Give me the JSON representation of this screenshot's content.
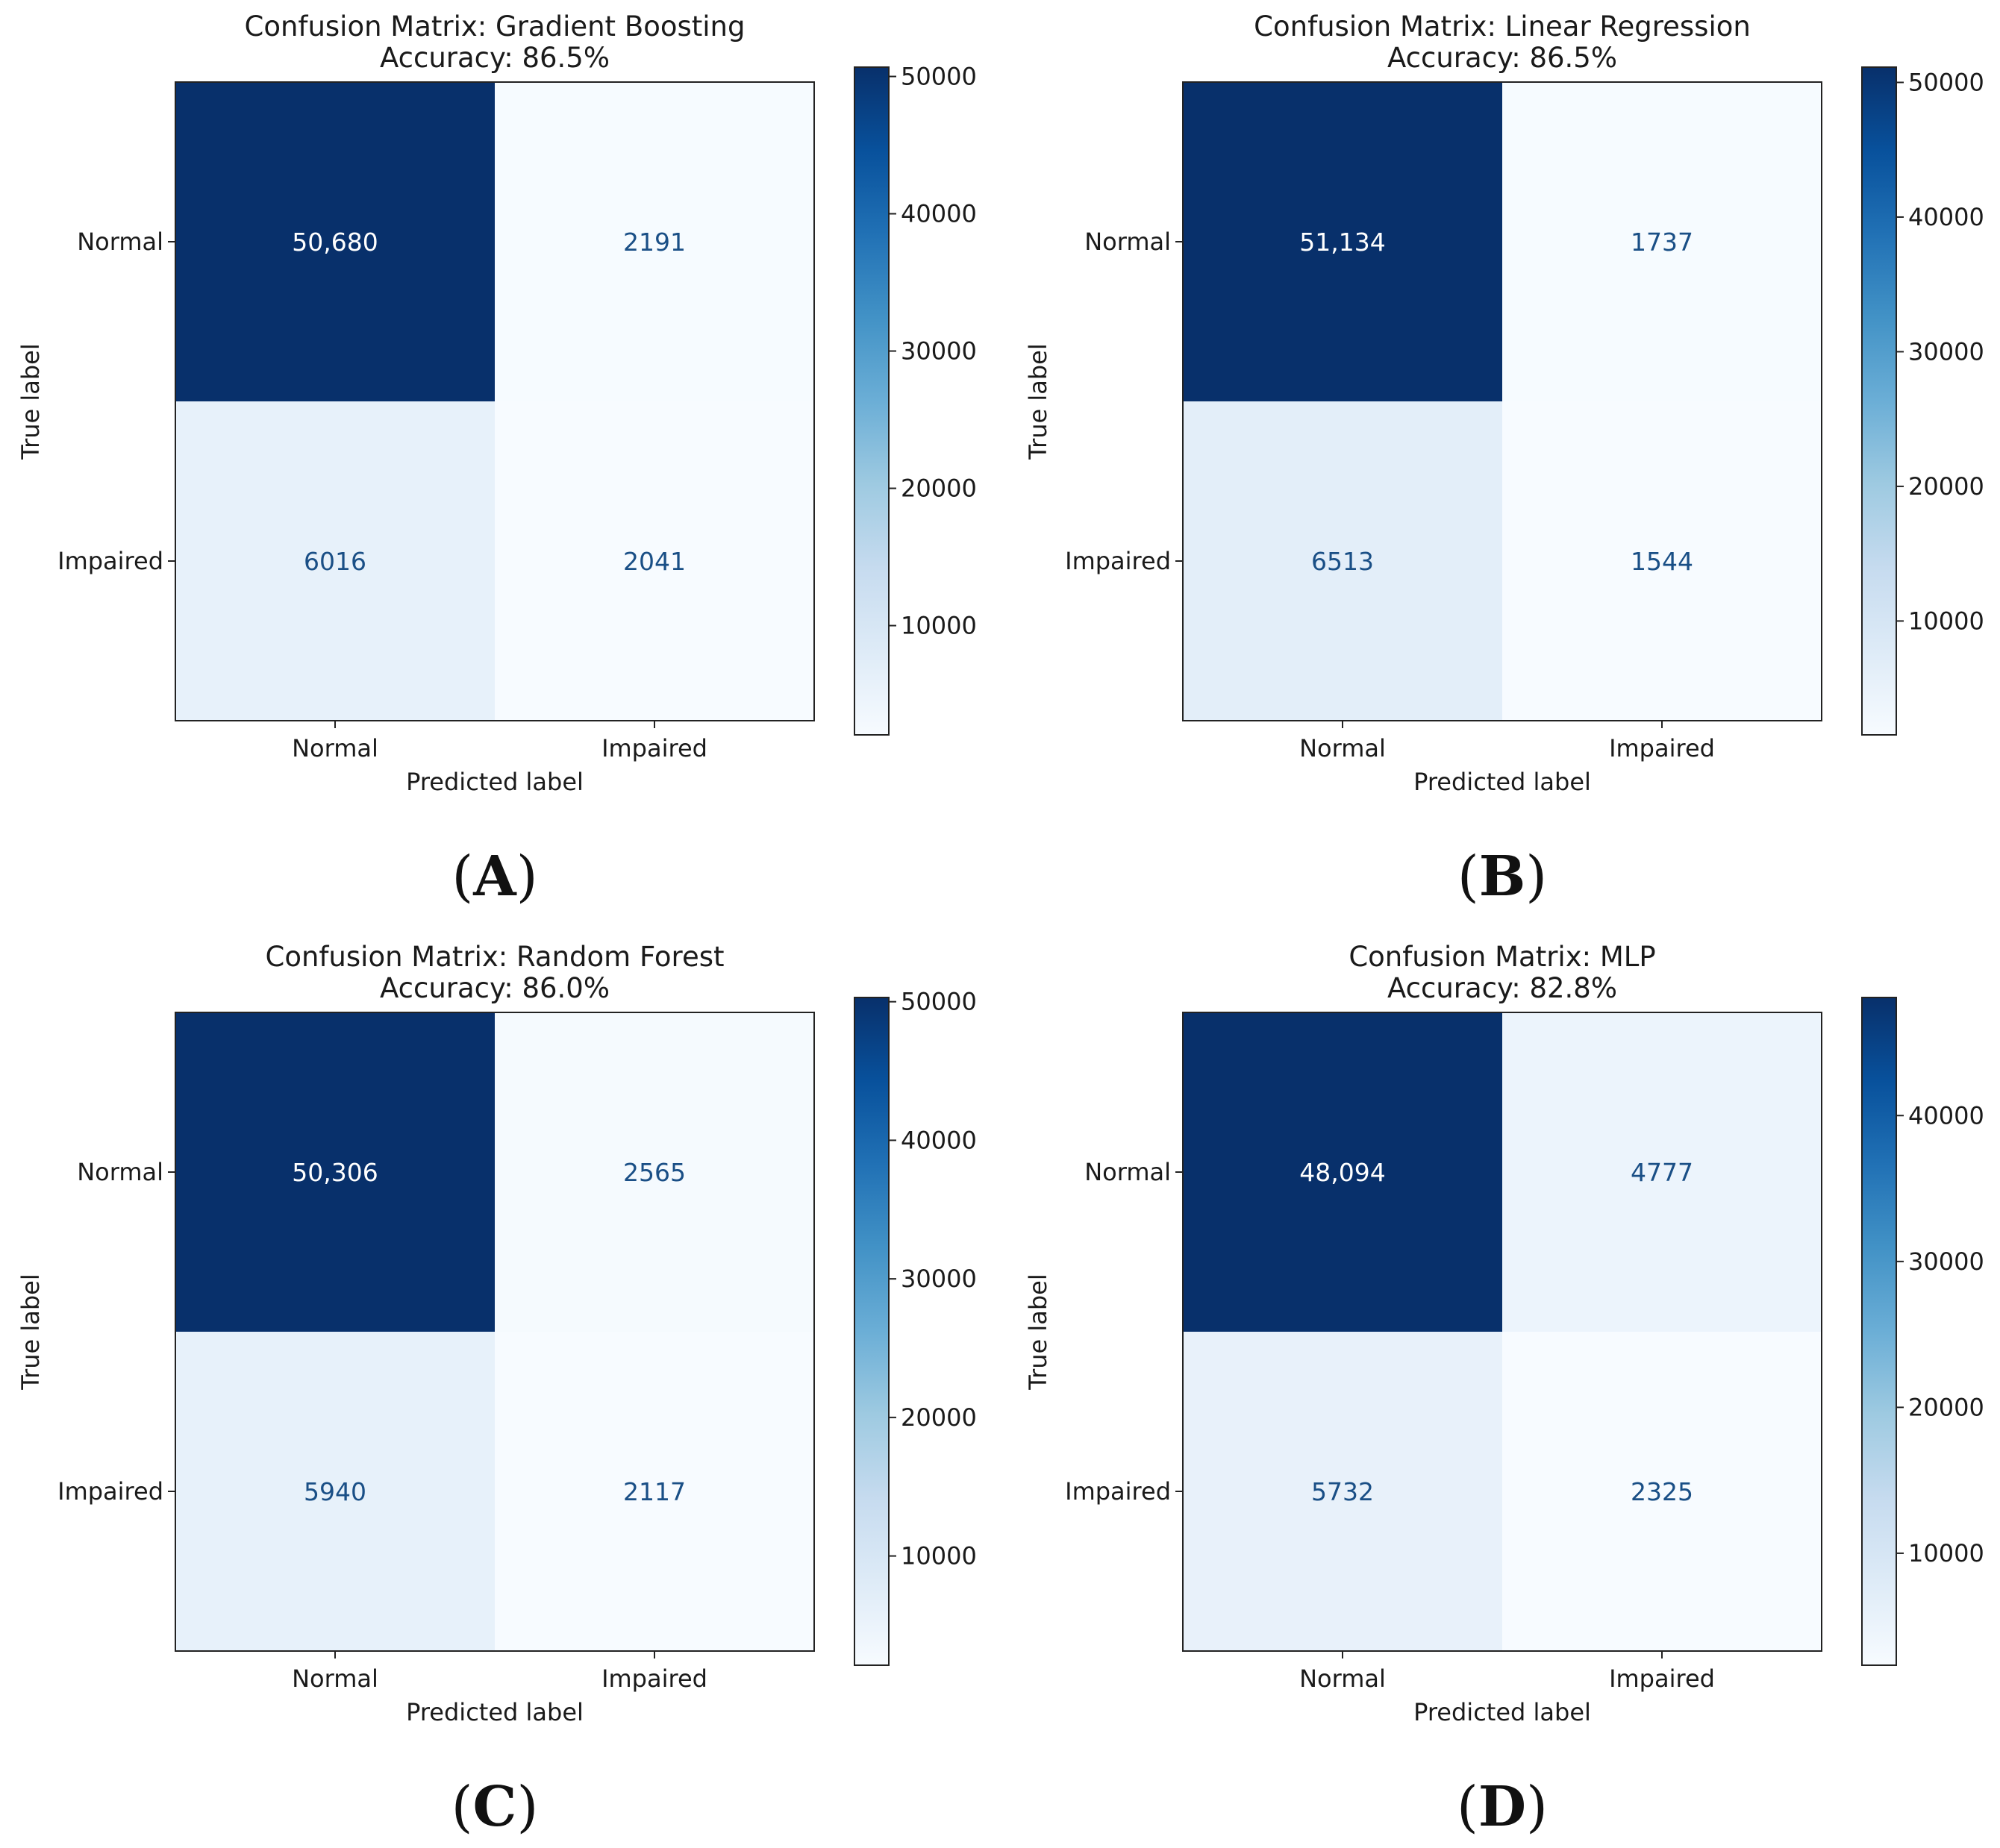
{
  "colors": {
    "cmap": [
      "#f7fbff",
      "#deebf7",
      "#c6dbef",
      "#9ecae1",
      "#6baed6",
      "#4292c6",
      "#2171b5",
      "#08519c",
      "#08306b"
    ],
    "text_dark": "#1a4f86",
    "text_light": "#ffffff",
    "frame": "#222222"
  },
  "chart_data": [
    {
      "type": "heatmap",
      "panel_label": "A",
      "title": "Confusion Matrix: Gradient Boosting",
      "subtitle": "Accuracy: 86.5%",
      "xlabel": "Predicted label",
      "ylabel": "True label",
      "x_categories": [
        "Normal",
        "Impaired"
      ],
      "y_categories": [
        "Normal",
        "Impaired"
      ],
      "matrix": [
        [
          50680,
          2191
        ],
        [
          6016,
          2041
        ]
      ],
      "cell_labels": [
        [
          "50,680",
          "2191"
        ],
        [
          "6016",
          "2041"
        ]
      ],
      "colorbar": {
        "range": [
          2041,
          50680
        ],
        "ticks": [
          10000,
          20000,
          30000,
          40000,
          50000
        ],
        "tick_labels": [
          "10000",
          "20000",
          "30000",
          "40000",
          "50000"
        ]
      }
    },
    {
      "type": "heatmap",
      "panel_label": "B",
      "title": "Confusion Matrix: Linear Regression",
      "subtitle": "Accuracy: 86.5%",
      "xlabel": "Predicted label",
      "ylabel": "True label",
      "x_categories": [
        "Normal",
        "Impaired"
      ],
      "y_categories": [
        "Normal",
        "Impaired"
      ],
      "matrix": [
        [
          51134,
          1737
        ],
        [
          6513,
          1544
        ]
      ],
      "cell_labels": [
        [
          "51,134",
          "1737"
        ],
        [
          "6513",
          "1544"
        ]
      ],
      "colorbar": {
        "range": [
          1544,
          51134
        ],
        "ticks": [
          10000,
          20000,
          30000,
          40000,
          50000
        ],
        "tick_labels": [
          "10000",
          "20000",
          "30000",
          "40000",
          "50000"
        ]
      }
    },
    {
      "type": "heatmap",
      "panel_label": "C",
      "title": "Confusion Matrix: Random Forest",
      "subtitle": "Accuracy: 86.0%",
      "xlabel": "Predicted label",
      "ylabel": "True label",
      "x_categories": [
        "Normal",
        "Impaired"
      ],
      "y_categories": [
        "Normal",
        "Impaired"
      ],
      "matrix": [
        [
          50306,
          2565
        ],
        [
          5940,
          2117
        ]
      ],
      "cell_labels": [
        [
          "50,306",
          "2565"
        ],
        [
          "5940",
          "2117"
        ]
      ],
      "colorbar": {
        "range": [
          2117,
          50306
        ],
        "ticks": [
          10000,
          20000,
          30000,
          40000,
          50000
        ],
        "tick_labels": [
          "10000",
          "20000",
          "30000",
          "40000",
          "50000"
        ]
      }
    },
    {
      "type": "heatmap",
      "panel_label": "D",
      "title": "Confusion Matrix: MLP",
      "subtitle": "Accuracy: 82.8%",
      "xlabel": "Predicted label",
      "ylabel": "True label",
      "x_categories": [
        "Normal",
        "Impaired"
      ],
      "y_categories": [
        "Normal",
        "Impaired"
      ],
      "matrix": [
        [
          48094,
          4777
        ],
        [
          5732,
          2325
        ]
      ],
      "cell_labels": [
        [
          "48,094",
          "4777"
        ],
        [
          "5732",
          "2325"
        ]
      ],
      "colorbar": {
        "range": [
          2325,
          48094
        ],
        "ticks": [
          10000,
          20000,
          30000,
          40000
        ],
        "tick_labels": [
          "10000",
          "20000",
          "30000",
          "40000"
        ]
      }
    }
  ]
}
